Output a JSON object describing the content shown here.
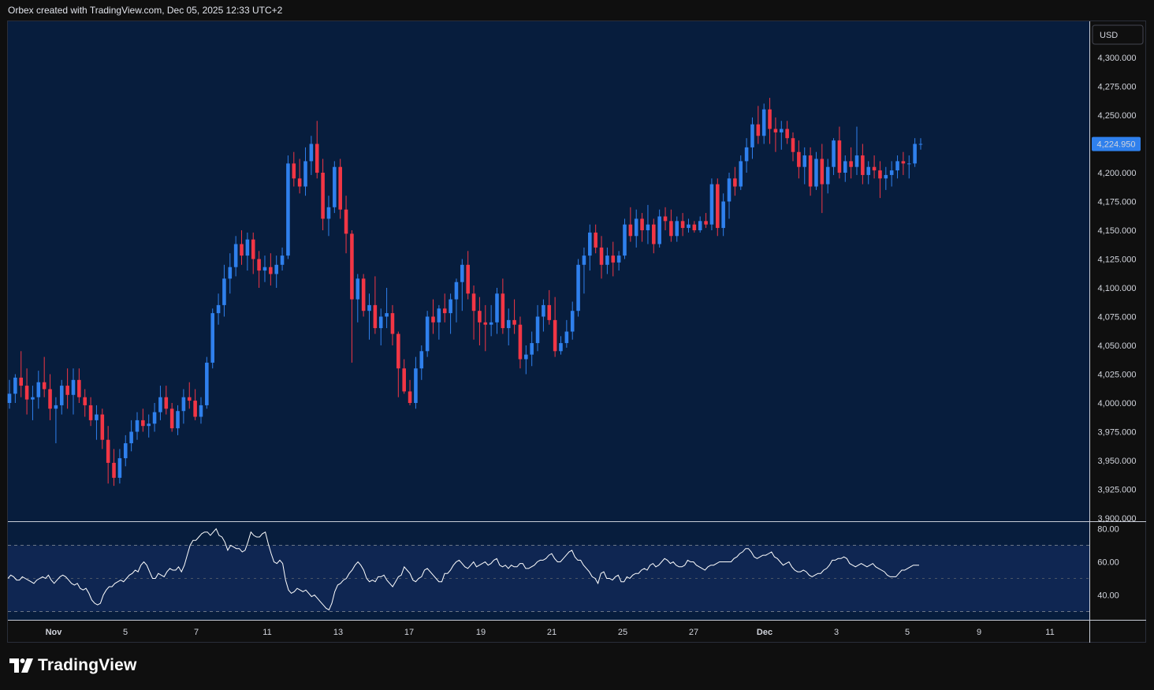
{
  "header": {
    "text": "Orbex created with TradingView.com, Dec 05, 2025 12:33 UTC+2"
  },
  "footer": {
    "brand": "TradingView",
    "logo_icon": "tradingview-logo-icon"
  },
  "colors": {
    "pane_bg": "#071d3d",
    "rsi_band_bg": "#0f2652",
    "candle_up": "#2f80ed",
    "candle_down": "#f23645",
    "rsi_line": "#ffffff",
    "price_badge": "#2f80ed"
  },
  "chart_data": {
    "type": "candlestick",
    "currency": "USD",
    "last_price_label": "4,224.950",
    "price_axis": {
      "ticks": [
        "4,300.000",
        "4,275.000",
        "4,250.000",
        "4,225.000",
        "4,200.000",
        "4,175.000",
        "4,150.000",
        "4,125.000",
        "4,100.000",
        "4,075.000",
        "4,050.000",
        "4,025.000",
        "4,000.000",
        "3,975.000",
        "3,950.000",
        "3,925.000",
        "3,900.000"
      ],
      "range": [
        3900,
        4300
      ]
    },
    "time_axis": {
      "labels": [
        "Nov",
        "5",
        "7",
        "11",
        "13",
        "17",
        "19",
        "21",
        "25",
        "27",
        "Dec",
        "3",
        "5",
        "9",
        "11"
      ],
      "bold_labels": [
        "Nov",
        "Dec"
      ]
    },
    "candles": [
      [
        4000,
        4020,
        3995,
        4008
      ],
      [
        4008,
        4025,
        4000,
        4022
      ],
      [
        4022,
        4045,
        4005,
        4015
      ],
      [
        4015,
        4030,
        3990,
        4003
      ],
      [
        4003,
        4015,
        3985,
        4005
      ],
      [
        4005,
        4028,
        3995,
        4018
      ],
      [
        4018,
        4040,
        4005,
        4012
      ],
      [
        4012,
        4025,
        3985,
        3995
      ],
      [
        3995,
        4005,
        3965,
        3998
      ],
      [
        3998,
        4020,
        3990,
        4015
      ],
      [
        4015,
        4030,
        3995,
        4007
      ],
      [
        4007,
        4030,
        3990,
        4020
      ],
      [
        4020,
        4030,
        4000,
        4005
      ],
      [
        4005,
        4012,
        3988,
        3998
      ],
      [
        3998,
        4005,
        3980,
        3985
      ],
      [
        3985,
        3998,
        3968,
        3990
      ],
      [
        3990,
        3995,
        3960,
        3968
      ],
      [
        3968,
        3980,
        3930,
        3948
      ],
      [
        3948,
        3960,
        3928,
        3935
      ],
      [
        3935,
        3960,
        3930,
        3952
      ],
      [
        3952,
        3972,
        3945,
        3965
      ],
      [
        3965,
        3985,
        3958,
        3975
      ],
      [
        3975,
        3992,
        3968,
        3985
      ],
      [
        3985,
        3995,
        3975,
        3980
      ],
      [
        3980,
        3990,
        3970,
        3982
      ],
      [
        3982,
        4000,
        3975,
        3992
      ],
      [
        3992,
        4015,
        3985,
        4005
      ],
      [
        4005,
        4015,
        3990,
        3995
      ],
      [
        3995,
        4000,
        3975,
        3978
      ],
      [
        3978,
        3998,
        3972,
        3993
      ],
      [
        3993,
        4012,
        3982,
        4005
      ],
      [
        4005,
        4018,
        3995,
        4002
      ],
      [
        4002,
        4012,
        3985,
        3988
      ],
      [
        3988,
        4005,
        3982,
        3998
      ],
      [
        3998,
        4040,
        3995,
        4035
      ],
      [
        4035,
        4082,
        4030,
        4078
      ],
      [
        4078,
        4095,
        4068,
        4085
      ],
      [
        4085,
        4120,
        4075,
        4108
      ],
      [
        4108,
        4130,
        4095,
        4118
      ],
      [
        4118,
        4145,
        4110,
        4138
      ],
      [
        4138,
        4150,
        4120,
        4128
      ],
      [
        4128,
        4148,
        4115,
        4142
      ],
      [
        4142,
        4148,
        4112,
        4125
      ],
      [
        4125,
        4132,
        4100,
        4115
      ],
      [
        4115,
        4128,
        4105,
        4118
      ],
      [
        4118,
        4130,
        4102,
        4112
      ],
      [
        4112,
        4128,
        4100,
        4120
      ],
      [
        4120,
        4135,
        4115,
        4128
      ],
      [
        4128,
        4215,
        4125,
        4208
      ],
      [
        4208,
        4218,
        4188,
        4195
      ],
      [
        4195,
        4212,
        4182,
        4188
      ],
      [
        4188,
        4222,
        4180,
        4210
      ],
      [
        4210,
        4232,
        4198,
        4225
      ],
      [
        4225,
        4245,
        4195,
        4200
      ],
      [
        4200,
        4212,
        4150,
        4160
      ],
      [
        4160,
        4180,
        4145,
        4170
      ],
      [
        4170,
        4210,
        4165,
        4205
      ],
      [
        4205,
        4212,
        4160,
        4168
      ],
      [
        4168,
        4180,
        4130,
        4147
      ],
      [
        4147,
        4150,
        4035,
        4090
      ],
      [
        4090,
        4112,
        4070,
        4108
      ],
      [
        4108,
        4112,
        4075,
        4080
      ],
      [
        4080,
        4095,
        4055,
        4085
      ],
      [
        4085,
        4110,
        4060,
        4065
      ],
      [
        4065,
        4082,
        4050,
        4075
      ],
      [
        4075,
        4100,
        4065,
        4078
      ],
      [
        4078,
        4085,
        4050,
        4060
      ],
      [
        4060,
        4062,
        4005,
        4030
      ],
      [
        4030,
        4038,
        4008,
        4010
      ],
      [
        4010,
        4020,
        3998,
        4000
      ],
      [
        4000,
        4040,
        3995,
        4030
      ],
      [
        4030,
        4050,
        4020,
        4045
      ],
      [
        4045,
        4080,
        4040,
        4075
      ],
      [
        4075,
        4090,
        4060,
        4070
      ],
      [
        4070,
        4085,
        4055,
        4082
      ],
      [
        4082,
        4095,
        4070,
        4078
      ],
      [
        4078,
        4095,
        4060,
        4090
      ],
      [
        4090,
        4108,
        4070,
        4105
      ],
      [
        4105,
        4125,
        4080,
        4120
      ],
      [
        4120,
        4132,
        4090,
        4095
      ],
      [
        4095,
        4102,
        4055,
        4080
      ],
      [
        4080,
        4092,
        4050,
        4070
      ],
      [
        4070,
        4085,
        4045,
        4068
      ],
      [
        4068,
        4085,
        4058,
        4070
      ],
      [
        4070,
        4100,
        4060,
        4095
      ],
      [
        4095,
        4108,
        4060,
        4065
      ],
      [
        4065,
        4082,
        4050,
        4072
      ],
      [
        4072,
        4090,
        4060,
        4068
      ],
      [
        4068,
        4075,
        4030,
        4038
      ],
      [
        4038,
        4050,
        4025,
        4042
      ],
      [
        4042,
        4062,
        4032,
        4052
      ],
      [
        4052,
        4085,
        4045,
        4075
      ],
      [
        4075,
        4090,
        4062,
        4085
      ],
      [
        4085,
        4098,
        4068,
        4072
      ],
      [
        4072,
        4092,
        4040,
        4045
      ],
      [
        4045,
        4058,
        4042,
        4052
      ],
      [
        4052,
        4072,
        4048,
        4062
      ],
      [
        4062,
        4088,
        4055,
        4080
      ],
      [
        4080,
        4125,
        4075,
        4120
      ],
      [
        4120,
        4135,
        4095,
        4128
      ],
      [
        4128,
        4155,
        4115,
        4148
      ],
      [
        4148,
        4155,
        4130,
        4135
      ],
      [
        4135,
        4145,
        4108,
        4120
      ],
      [
        4120,
        4135,
        4112,
        4128
      ],
      [
        4128,
        4140,
        4110,
        4122
      ],
      [
        4122,
        4132,
        4115,
        4128
      ],
      [
        4128,
        4160,
        4125,
        4155
      ],
      [
        4155,
        4170,
        4140,
        4145
      ],
      [
        4145,
        4168,
        4135,
        4160
      ],
      [
        4160,
        4165,
        4140,
        4150
      ],
      [
        4150,
        4172,
        4138,
        4155
      ],
      [
        4155,
        4160,
        4130,
        4138
      ],
      [
        4138,
        4168,
        4135,
        4162
      ],
      [
        4162,
        4170,
        4150,
        4158
      ],
      [
        4158,
        4168,
        4140,
        4145
      ],
      [
        4145,
        4162,
        4140,
        4158
      ],
      [
        4158,
        4165,
        4145,
        4152
      ],
      [
        4152,
        4160,
        4148,
        4155
      ],
      [
        4155,
        4158,
        4148,
        4150
      ],
      [
        4150,
        4162,
        4148,
        4158
      ],
      [
        4158,
        4165,
        4152,
        4155
      ],
      [
        4155,
        4195,
        4150,
        4190
      ],
      [
        4190,
        4195,
        4145,
        4152
      ],
      [
        4152,
        4182,
        4145,
        4175
      ],
      [
        4175,
        4200,
        4160,
        4195
      ],
      [
        4195,
        4205,
        4180,
        4188
      ],
      [
        4188,
        4215,
        4185,
        4210
      ],
      [
        4210,
        4230,
        4200,
        4222
      ],
      [
        4222,
        4248,
        4212,
        4242
      ],
      [
        4242,
        4258,
        4225,
        4232
      ],
      [
        4232,
        4260,
        4225,
        4255
      ],
      [
        4255,
        4265,
        4225,
        4238
      ],
      [
        4238,
        4248,
        4218,
        4235
      ],
      [
        4235,
        4245,
        4220,
        4238
      ],
      [
        4238,
        4245,
        4225,
        4230
      ],
      [
        4230,
        4235,
        4210,
        4218
      ],
      [
        4218,
        4228,
        4195,
        4205
      ],
      [
        4205,
        4222,
        4190,
        4215
      ],
      [
        4215,
        4222,
        4180,
        4188
      ],
      [
        4188,
        4218,
        4185,
        4212
      ],
      [
        4212,
        4225,
        4165,
        4190
      ],
      [
        4190,
        4212,
        4182,
        4205
      ],
      [
        4205,
        4230,
        4198,
        4228
      ],
      [
        4228,
        4240,
        4195,
        4200
      ],
      [
        4200,
        4215,
        4192,
        4210
      ],
      [
        4210,
        4222,
        4195,
        4205
      ],
      [
        4205,
        4240,
        4198,
        4215
      ],
      [
        4215,
        4225,
        4190,
        4198
      ],
      [
        4198,
        4210,
        4190,
        4205
      ],
      [
        4205,
        4215,
        4195,
        4202
      ],
      [
        4202,
        4210,
        4178,
        4195
      ],
      [
        4195,
        4205,
        4185,
        4198
      ],
      [
        4198,
        4210,
        4188,
        4202
      ],
      [
        4202,
        4215,
        4195,
        4210
      ],
      [
        4210,
        4218,
        4198,
        4208
      ],
      [
        4208,
        4215,
        4195,
        4208
      ],
      [
        4208,
        4230,
        4205,
        4225
      ],
      [
        4225,
        4230,
        4220,
        4225
      ]
    ],
    "rsi": {
      "axis_ticks": [
        "80.00",
        "60.00",
        "40.00"
      ],
      "band_levels": [
        70,
        30
      ],
      "mid_level": 50,
      "range": [
        25,
        84
      ],
      "values": [
        50,
        52,
        51,
        49,
        49,
        51,
        50,
        49,
        48,
        47,
        49,
        50,
        51,
        50,
        52,
        49,
        47,
        49,
        51,
        52,
        51,
        49,
        47,
        46,
        47,
        44,
        43,
        44,
        41,
        37,
        35,
        34,
        35,
        40,
        43,
        45,
        45,
        47,
        48,
        49,
        48,
        50,
        52,
        53,
        55,
        54,
        58,
        60,
        58,
        54,
        50,
        50,
        53,
        52,
        51,
        54,
        56,
        55,
        55,
        57,
        54,
        58,
        64,
        70,
        73,
        73,
        75,
        77,
        78,
        78,
        76,
        78,
        80,
        76,
        75,
        72,
        67,
        70,
        69,
        68,
        68,
        66,
        67,
        72,
        78,
        76,
        75,
        75,
        77,
        78,
        71,
        65,
        60,
        59,
        61,
        59,
        49,
        43,
        41,
        42,
        44,
        43,
        42,
        43,
        41,
        39,
        40,
        38,
        36,
        34,
        32,
        31,
        35,
        42,
        46,
        47,
        49,
        50,
        53,
        55,
        58,
        60,
        58,
        55,
        50,
        48,
        49,
        48,
        51,
        51,
        52,
        49,
        47,
        45,
        48,
        51,
        52,
        57,
        55,
        53,
        49,
        48,
        50,
        51,
        55,
        56,
        54,
        52,
        50,
        48,
        48,
        53,
        53,
        55,
        58,
        60,
        61,
        59,
        57,
        56,
        58,
        60,
        57,
        58,
        59,
        60,
        58,
        59,
        61,
        62,
        58,
        57,
        58,
        56,
        58,
        57,
        57,
        59,
        59,
        56,
        56,
        57,
        58,
        60,
        61,
        61,
        62,
        64,
        65,
        62,
        60,
        60,
        62,
        64,
        66,
        67,
        63,
        61,
        61,
        58,
        56,
        54,
        51,
        50,
        47,
        53,
        54,
        50,
        50,
        49,
        51,
        52,
        48,
        48,
        51,
        50,
        52,
        53,
        53,
        55,
        56,
        55,
        58,
        59,
        57,
        58,
        60,
        62,
        61,
        59,
        60,
        58,
        57,
        57,
        58,
        61,
        60,
        60,
        58,
        57,
        56,
        55,
        57,
        58,
        58,
        59,
        60,
        60,
        60,
        60,
        60,
        62,
        63,
        65,
        66,
        68,
        68,
        66,
        63,
        62,
        63,
        64,
        64,
        65,
        66,
        63,
        62,
        60,
        58,
        59,
        60,
        57,
        55,
        54,
        54,
        55,
        54,
        52,
        51,
        52,
        53,
        53,
        55,
        56,
        58,
        61,
        61,
        62,
        62,
        63,
        62,
        59,
        58,
        57,
        58,
        59,
        58,
        57,
        58,
        59,
        57,
        56,
        55,
        54,
        52,
        51,
        51,
        51,
        53,
        55,
        55,
        56,
        57,
        58,
        58,
        58
      ]
    }
  }
}
